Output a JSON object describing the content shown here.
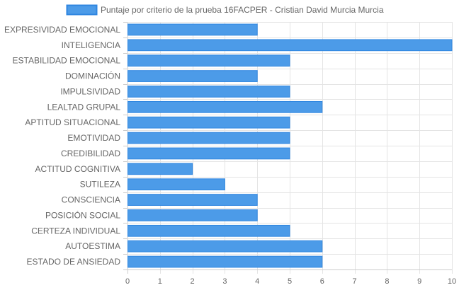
{
  "chart_data": {
    "type": "bar",
    "orientation": "horizontal",
    "categories": [
      "EXPRESIVIDAD EMOCIONAL",
      "INTELIGENCIA",
      "ESTABILIDAD EMOCIONAL",
      "DOMINACIÓN",
      "IMPULSIVIDAD",
      "LEALTAD GRUPAL",
      "APTITUD SITUACIONAL",
      "EMOTIVIDAD",
      "CREDIBILIDAD",
      "ACTITUD COGNITIVA",
      "SUTILEZA",
      "CONSCIENCIA",
      "POSICIÓN SOCIAL",
      "CERTEZA INDIVIDUAL",
      "AUTOESTIMA",
      "ESTADO DE ANSIEDAD"
    ],
    "series": [
      {
        "name": "Puntaje por criterio de la prueba 16FACPER - Cristian David Murcia Murcia",
        "values": [
          4,
          10,
          5,
          4,
          5,
          6,
          5,
          5,
          5,
          2,
          3,
          4,
          4,
          5,
          6,
          6
        ]
      }
    ],
    "xlim": [
      0,
      10
    ],
    "x_ticks": [
      "0",
      "1",
      "2",
      "3",
      "4",
      "5",
      "6",
      "7",
      "8",
      "9",
      "10"
    ],
    "grid": true,
    "legend_position": "top-center",
    "colors": {
      "bar_fill": "#4c9be8",
      "bar_stroke": "#2f86e0",
      "grid": "#e4e4e4",
      "axis": "#cccccc",
      "text": "#666666"
    }
  }
}
